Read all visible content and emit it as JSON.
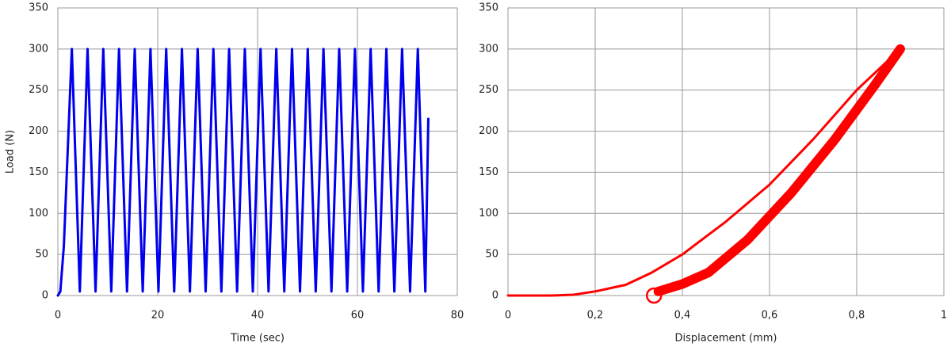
{
  "chart_data": [
    {
      "type": "line",
      "xlabel": "Time (sec)",
      "ylabel": "Load (N)",
      "xlim": [
        0,
        80
      ],
      "xticks": [
        0,
        20,
        40,
        60,
        80
      ],
      "ylim": [
        0,
        350
      ],
      "yticks": [
        0,
        50,
        100,
        150,
        200,
        250,
        300,
        350
      ],
      "grid": true,
      "series": [
        {
          "color": "#0000ee",
          "line_width": 3,
          "x": [
            0,
            0.5,
            1.2,
            2.8,
            4.4,
            5.95,
            7.55,
            9.1,
            10.7,
            12.25,
            13.85,
            15.4,
            17.0,
            18.55,
            20.15,
            21.7,
            23.3,
            24.85,
            26.45,
            28.0,
            29.6,
            31.15,
            32.75,
            34.3,
            35.9,
            37.45,
            39.05,
            40.6,
            42.2,
            43.75,
            45.35,
            46.9,
            48.5,
            50.05,
            51.65,
            53.2,
            54.8,
            56.35,
            57.95,
            59.5,
            61.1,
            62.65,
            64.25,
            65.8,
            67.4,
            68.95,
            70.55,
            72.1,
            73.6,
            74.2
          ],
          "values": [
            0,
            5,
            60,
            300,
            5,
            300,
            5,
            300,
            5,
            300,
            5,
            300,
            5,
            300,
            5,
            300,
            5,
            300,
            5,
            300,
            5,
            300,
            5,
            300,
            5,
            300,
            5,
            300,
            5,
            300,
            5,
            300,
            5,
            300,
            5,
            300,
            5,
            300,
            5,
            300,
            5,
            300,
            5,
            300,
            5,
            300,
            5,
            300,
            5,
            215
          ]
        }
      ]
    },
    {
      "type": "line",
      "xlabel": "Displacement (mm)",
      "xlim": [
        0,
        1
      ],
      "xticks": [
        0,
        {
          "value": 0.2,
          "label": "0,2"
        },
        {
          "value": 0.4,
          "label": "0,4"
        },
        {
          "value": 0.6,
          "label": "0,6"
        },
        {
          "value": 0.8,
          "label": "0,8"
        },
        1
      ],
      "ylim": [
        0,
        350
      ],
      "yticks": [
        0,
        50,
        100,
        150,
        200,
        250,
        300,
        350
      ],
      "grid": true,
      "series": [
        {
          "color": "#ff0000",
          "line_width": 3,
          "x": [
            0,
            0.1,
            0.15,
            0.2,
            0.27,
            0.33,
            0.4,
            0.5,
            0.6,
            0.7,
            0.8,
            0.9
          ],
          "values": [
            0,
            0,
            1,
            5,
            13,
            28,
            50,
            90,
            135,
            190,
            250,
            300
          ]
        },
        {
          "color": "#ff0000",
          "line_width": 12,
          "x": [
            0.345,
            0.4,
            0.46,
            0.55,
            0.65,
            0.75,
            0.84,
            0.9
          ],
          "values": [
            5,
            14,
            28,
            68,
            125,
            190,
            255,
            300
          ]
        },
        {
          "color": "#ff0000",
          "marker": "open-circle",
          "x": [
            0.335
          ],
          "values": [
            0
          ]
        }
      ]
    }
  ]
}
